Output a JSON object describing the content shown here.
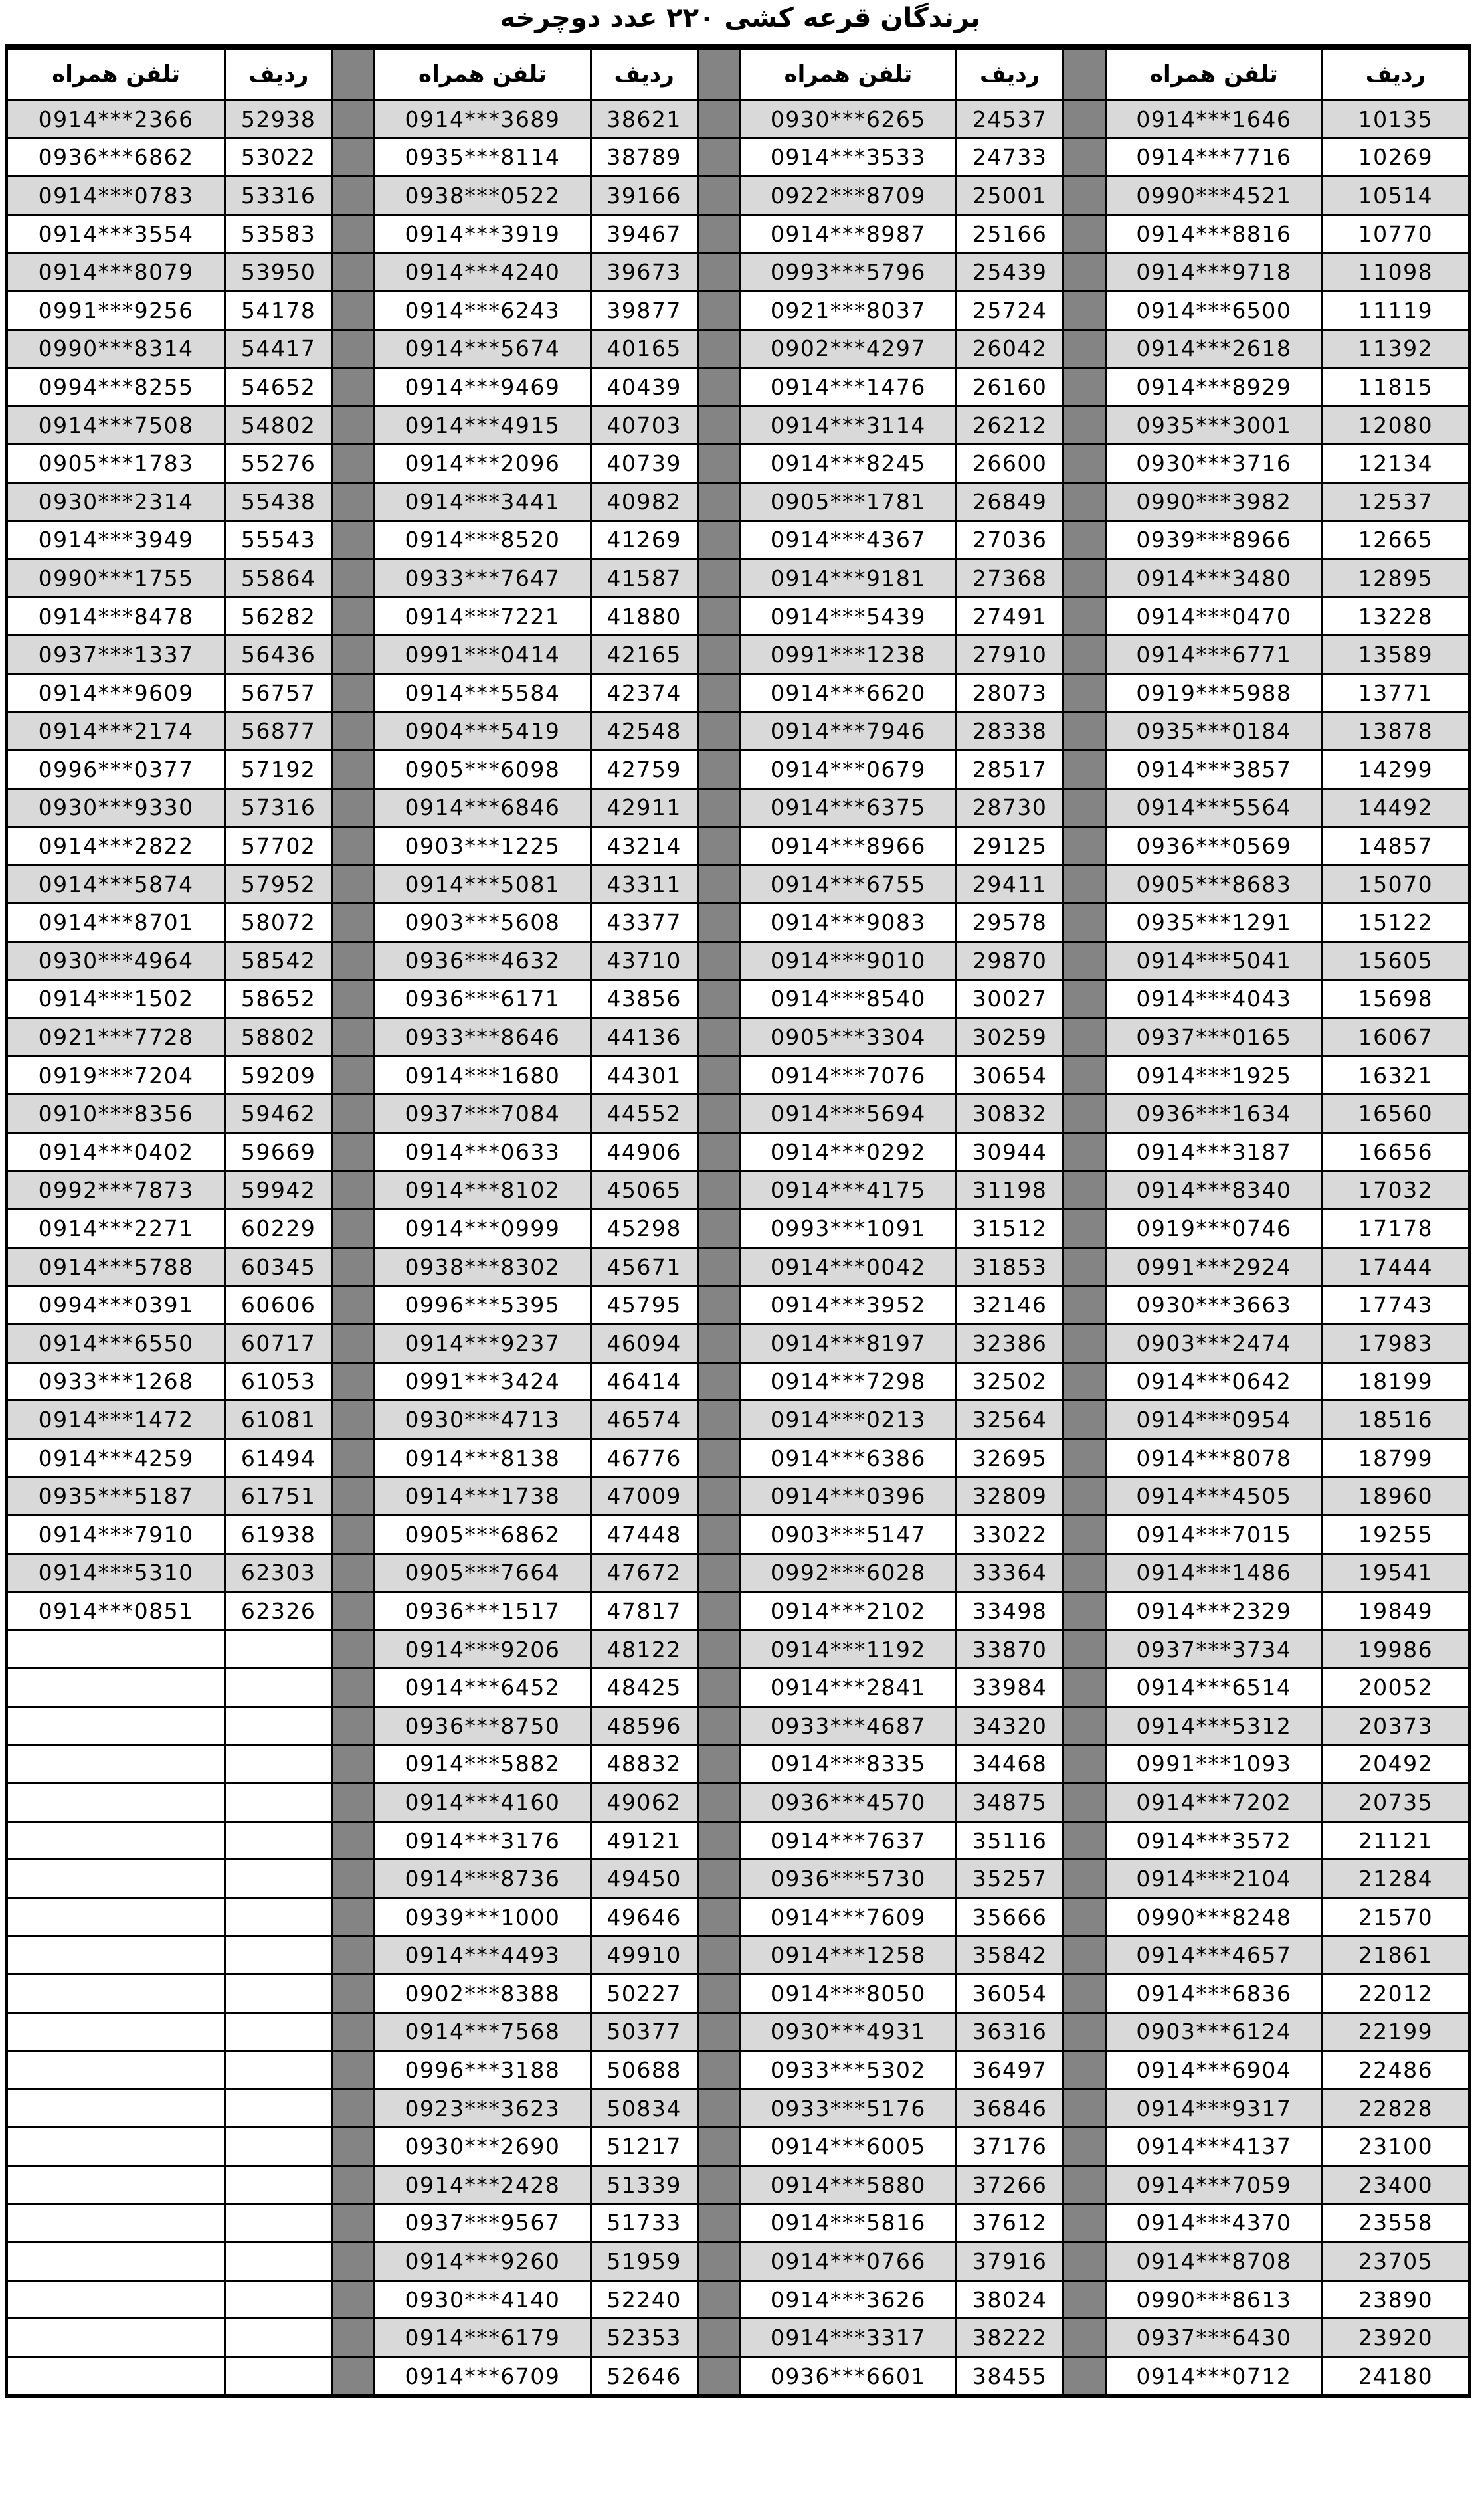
{
  "title": "برندگان قرعه کشی ۲۲۰ عدد دوچرخه",
  "headers": {
    "phone": "تلفن همراه",
    "row": "ردیف"
  },
  "colors": {
    "row_alt": "#d9d9d9",
    "row_plain": "#ffffff",
    "separator": "#848484",
    "border": "#000000",
    "text": "#000000"
  },
  "layout_note": "4 column-groups read right-to-left, each: ردیف (row no.) + تلفن همراه (phone); 60 visible rows; last (leftmost) group has 40 filled rows then empty cells",
  "columns": [
    "index",
    "phone"
  ],
  "groups": [
    {
      "rows": [
        [
          "10135",
          "0914***1646"
        ],
        [
          "10269",
          "0914***7716"
        ],
        [
          "10514",
          "0990***4521"
        ],
        [
          "10770",
          "0914***8816"
        ],
        [
          "11098",
          "0914***9718"
        ],
        [
          "11119",
          "0914***6500"
        ],
        [
          "11392",
          "0914***2618"
        ],
        [
          "11815",
          "0914***8929"
        ],
        [
          "12080",
          "0935***3001"
        ],
        [
          "12134",
          "0930***3716"
        ],
        [
          "12537",
          "0990***3982"
        ],
        [
          "12665",
          "0939***8966"
        ],
        [
          "12895",
          "0914***3480"
        ],
        [
          "13228",
          "0914***0470"
        ],
        [
          "13589",
          "0914***6771"
        ],
        [
          "13771",
          "0919***5988"
        ],
        [
          "13878",
          "0935***0184"
        ],
        [
          "14299",
          "0914***3857"
        ],
        [
          "14492",
          "0914***5564"
        ],
        [
          "14857",
          "0936***0569"
        ],
        [
          "15070",
          "0905***8683"
        ],
        [
          "15122",
          "0935***1291"
        ],
        [
          "15605",
          "0914***5041"
        ],
        [
          "15698",
          "0914***4043"
        ],
        [
          "16067",
          "0937***0165"
        ],
        [
          "16321",
          "0914***1925"
        ],
        [
          "16560",
          "0936***1634"
        ],
        [
          "16656",
          "0914***3187"
        ],
        [
          "17032",
          "0914***8340"
        ],
        [
          "17178",
          "0919***0746"
        ],
        [
          "17444",
          "0991***2924"
        ],
        [
          "17743",
          "0930***3663"
        ],
        [
          "17983",
          "0903***2474"
        ],
        [
          "18199",
          "0914***0642"
        ],
        [
          "18516",
          "0914***0954"
        ],
        [
          "18799",
          "0914***8078"
        ],
        [
          "18960",
          "0914***4505"
        ],
        [
          "19255",
          "0914***7015"
        ],
        [
          "19541",
          "0914***1486"
        ],
        [
          "19849",
          "0914***2329"
        ],
        [
          "19986",
          "0937***3734"
        ],
        [
          "20052",
          "0914***6514"
        ],
        [
          "20373",
          "0914***5312"
        ],
        [
          "20492",
          "0991***1093"
        ],
        [
          "20735",
          "0914***7202"
        ],
        [
          "21121",
          "0914***3572"
        ],
        [
          "21284",
          "0914***2104"
        ],
        [
          "21570",
          "0990***8248"
        ],
        [
          "21861",
          "0914***4657"
        ],
        [
          "22012",
          "0914***6836"
        ],
        [
          "22199",
          "0903***6124"
        ],
        [
          "22486",
          "0914***6904"
        ],
        [
          "22828",
          "0914***9317"
        ],
        [
          "23100",
          "0914***4137"
        ],
        [
          "23400",
          "0914***7059"
        ],
        [
          "23558",
          "0914***4370"
        ],
        [
          "23705",
          "0914***8708"
        ],
        [
          "23890",
          "0990***8613"
        ],
        [
          "23920",
          "0937***6430"
        ],
        [
          "24180",
          "0914***0712"
        ]
      ]
    },
    {
      "rows": [
        [
          "24537",
          "0930***6265"
        ],
        [
          "24733",
          "0914***3533"
        ],
        [
          "25001",
          "0922***8709"
        ],
        [
          "25166",
          "0914***8987"
        ],
        [
          "25439",
          "0993***5796"
        ],
        [
          "25724",
          "0921***8037"
        ],
        [
          "26042",
          "0902***4297"
        ],
        [
          "26160",
          "0914***1476"
        ],
        [
          "26212",
          "0914***3114"
        ],
        [
          "26600",
          "0914***8245"
        ],
        [
          "26849",
          "0905***1781"
        ],
        [
          "27036",
          "0914***4367"
        ],
        [
          "27368",
          "0914***9181"
        ],
        [
          "27491",
          "0914***5439"
        ],
        [
          "27910",
          "0991***1238"
        ],
        [
          "28073",
          "0914***6620"
        ],
        [
          "28338",
          "0914***7946"
        ],
        [
          "28517",
          "0914***0679"
        ],
        [
          "28730",
          "0914***6375"
        ],
        [
          "29125",
          "0914***8966"
        ],
        [
          "29411",
          "0914***6755"
        ],
        [
          "29578",
          "0914***9083"
        ],
        [
          "29870",
          "0914***9010"
        ],
        [
          "30027",
          "0914***8540"
        ],
        [
          "30259",
          "0905***3304"
        ],
        [
          "30654",
          "0914***7076"
        ],
        [
          "30832",
          "0914***5694"
        ],
        [
          "30944",
          "0914***0292"
        ],
        [
          "31198",
          "0914***4175"
        ],
        [
          "31512",
          "0993***1091"
        ],
        [
          "31853",
          "0914***0042"
        ],
        [
          "32146",
          "0914***3952"
        ],
        [
          "32386",
          "0914***8197"
        ],
        [
          "32502",
          "0914***7298"
        ],
        [
          "32564",
          "0914***0213"
        ],
        [
          "32695",
          "0914***6386"
        ],
        [
          "32809",
          "0914***0396"
        ],
        [
          "33022",
          "0903***5147"
        ],
        [
          "33364",
          "0992***6028"
        ],
        [
          "33498",
          "0914***2102"
        ],
        [
          "33870",
          "0914***1192"
        ],
        [
          "33984",
          "0914***2841"
        ],
        [
          "34320",
          "0933***4687"
        ],
        [
          "34468",
          "0914***8335"
        ],
        [
          "34875",
          "0936***4570"
        ],
        [
          "35116",
          "0914***7637"
        ],
        [
          "35257",
          "0936***5730"
        ],
        [
          "35666",
          "0914***7609"
        ],
        [
          "35842",
          "0914***1258"
        ],
        [
          "36054",
          "0914***8050"
        ],
        [
          "36316",
          "0930***4931"
        ],
        [
          "36497",
          "0933***5302"
        ],
        [
          "36846",
          "0933***5176"
        ],
        [
          "37176",
          "0914***6005"
        ],
        [
          "37266",
          "0914***5880"
        ],
        [
          "37612",
          "0914***5816"
        ],
        [
          "37916",
          "0914***0766"
        ],
        [
          "38024",
          "0914***3626"
        ],
        [
          "38222",
          "0914***3317"
        ],
        [
          "38455",
          "0936***6601"
        ]
      ]
    },
    {
      "rows": [
        [
          "38621",
          "0914***3689"
        ],
        [
          "38789",
          "0935***8114"
        ],
        [
          "39166",
          "0938***0522"
        ],
        [
          "39467",
          "0914***3919"
        ],
        [
          "39673",
          "0914***4240"
        ],
        [
          "39877",
          "0914***6243"
        ],
        [
          "40165",
          "0914***5674"
        ],
        [
          "40439",
          "0914***9469"
        ],
        [
          "40703",
          "0914***4915"
        ],
        [
          "40739",
          "0914***2096"
        ],
        [
          "40982",
          "0914***3441"
        ],
        [
          "41269",
          "0914***8520"
        ],
        [
          "41587",
          "0933***7647"
        ],
        [
          "41880",
          "0914***7221"
        ],
        [
          "42165",
          "0991***0414"
        ],
        [
          "42374",
          "0914***5584"
        ],
        [
          "42548",
          "0904***5419"
        ],
        [
          "42759",
          "0905***6098"
        ],
        [
          "42911",
          "0914***6846"
        ],
        [
          "43214",
          "0903***1225"
        ],
        [
          "43311",
          "0914***5081"
        ],
        [
          "43377",
          "0903***5608"
        ],
        [
          "43710",
          "0936***4632"
        ],
        [
          "43856",
          "0936***6171"
        ],
        [
          "44136",
          "0933***8646"
        ],
        [
          "44301",
          "0914***1680"
        ],
        [
          "44552",
          "0937***7084"
        ],
        [
          "44906",
          "0914***0633"
        ],
        [
          "45065",
          "0914***8102"
        ],
        [
          "45298",
          "0914***0999"
        ],
        [
          "45671",
          "0938***8302"
        ],
        [
          "45795",
          "0996***5395"
        ],
        [
          "46094",
          "0914***9237"
        ],
        [
          "46414",
          "0991***3424"
        ],
        [
          "46574",
          "0930***4713"
        ],
        [
          "46776",
          "0914***8138"
        ],
        [
          "47009",
          "0914***1738"
        ],
        [
          "47448",
          "0905***6862"
        ],
        [
          "47672",
          "0905***7664"
        ],
        [
          "47817",
          "0936***1517"
        ],
        [
          "48122",
          "0914***9206"
        ],
        [
          "48425",
          "0914***6452"
        ],
        [
          "48596",
          "0936***8750"
        ],
        [
          "48832",
          "0914***5882"
        ],
        [
          "49062",
          "0914***4160"
        ],
        [
          "49121",
          "0914***3176"
        ],
        [
          "49450",
          "0914***8736"
        ],
        [
          "49646",
          "0939***1000"
        ],
        [
          "49910",
          "0914***4493"
        ],
        [
          "50227",
          "0902***8388"
        ],
        [
          "50377",
          "0914***7568"
        ],
        [
          "50688",
          "0996***3188"
        ],
        [
          "50834",
          "0923***3623"
        ],
        [
          "51217",
          "0930***2690"
        ],
        [
          "51339",
          "0914***2428"
        ],
        [
          "51733",
          "0937***9567"
        ],
        [
          "51959",
          "0914***9260"
        ],
        [
          "52240",
          "0930***4140"
        ],
        [
          "52353",
          "0914***6179"
        ],
        [
          "52646",
          "0914***6709"
        ]
      ]
    },
    {
      "rows": [
        [
          "52938",
          "0914***2366"
        ],
        [
          "53022",
          "0936***6862"
        ],
        [
          "53316",
          "0914***0783"
        ],
        [
          "53583",
          "0914***3554"
        ],
        [
          "53950",
          "0914***8079"
        ],
        [
          "54178",
          "0991***9256"
        ],
        [
          "54417",
          "0990***8314"
        ],
        [
          "54652",
          "0994***8255"
        ],
        [
          "54802",
          "0914***7508"
        ],
        [
          "55276",
          "0905***1783"
        ],
        [
          "55438",
          "0930***2314"
        ],
        [
          "55543",
          "0914***3949"
        ],
        [
          "55864",
          "0990***1755"
        ],
        [
          "56282",
          "0914***8478"
        ],
        [
          "56436",
          "0937***1337"
        ],
        [
          "56757",
          "0914***9609"
        ],
        [
          "56877",
          "0914***2174"
        ],
        [
          "57192",
          "0996***0377"
        ],
        [
          "57316",
          "0930***9330"
        ],
        [
          "57702",
          "0914***2822"
        ],
        [
          "57952",
          "0914***5874"
        ],
        [
          "58072",
          "0914***8701"
        ],
        [
          "58542",
          "0930***4964"
        ],
        [
          "58652",
          "0914***1502"
        ],
        [
          "58802",
          "0921***7728"
        ],
        [
          "59209",
          "0919***7204"
        ],
        [
          "59462",
          "0910***8356"
        ],
        [
          "59669",
          "0914***0402"
        ],
        [
          "59942",
          "0992***7873"
        ],
        [
          "60229",
          "0914***2271"
        ],
        [
          "60345",
          "0914***5788"
        ],
        [
          "60606",
          "0994***0391"
        ],
        [
          "60717",
          "0914***6550"
        ],
        [
          "61053",
          "0933***1268"
        ],
        [
          "61081",
          "0914***1472"
        ],
        [
          "61494",
          "0914***4259"
        ],
        [
          "61751",
          "0935***5187"
        ],
        [
          "61938",
          "0914***7910"
        ],
        [
          "62303",
          "0914***5310"
        ],
        [
          "62326",
          "0914***0851"
        ]
      ]
    }
  ]
}
